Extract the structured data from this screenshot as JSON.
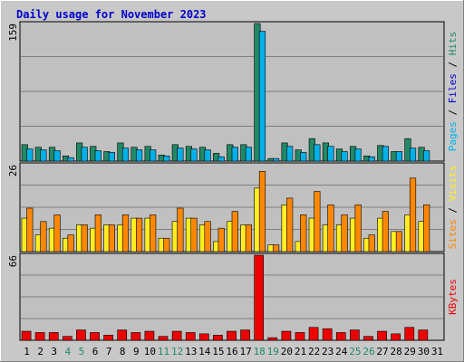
{
  "chart_data": {
    "type": "bar",
    "title": "Daily usage for November 2023",
    "categories": [
      "1",
      "2",
      "3",
      "4",
      "5",
      "6",
      "7",
      "8",
      "9",
      "10",
      "11",
      "12",
      "13",
      "14",
      "15",
      "16",
      "17",
      "18",
      "19",
      "20",
      "21",
      "22",
      "23",
      "24",
      "25",
      "26",
      "27",
      "28",
      "29",
      "30",
      "31"
    ],
    "weekend_days": [
      "4",
      "5",
      "11",
      "12",
      "18",
      "19",
      "25",
      "26"
    ],
    "panels": [
      {
        "id": "hits-files-pages",
        "ymax": 159,
        "ymax_label": "159",
        "legend": [
          "Pages",
          "Files",
          "Hits"
        ],
        "series": [
          {
            "name": "Hits",
            "color": "#228866",
            "values": [
              19,
              16,
              16,
              6,
              21,
              17,
              11,
              21,
              16,
              17,
              7,
              19,
              17,
              16,
              9,
              19,
              19,
              159,
              3,
              21,
              13,
              26,
              21,
              14,
              17,
              6,
              18,
              11,
              26,
              16,
              0
            ]
          },
          {
            "name": "Files",
            "color": "#00b0e8",
            "values": [
              14,
              13,
              12,
              4,
              16,
              12,
              10,
              15,
              13,
              13,
              6,
              15,
              14,
              13,
              5,
              16,
              16,
              150,
              3,
              17,
              10,
              19,
              17,
              11,
              14,
              5,
              17,
              11,
              15,
              12,
              0
            ]
          },
          {
            "name": "Pages",
            "color": "#00b0e8",
            "values": []
          }
        ]
      },
      {
        "id": "visits-sites",
        "ymax": 26,
        "ymax_label": "26",
        "legend": [
          "Sites",
          "Visits"
        ],
        "series": [
          {
            "name": "Visits",
            "color": "#ffee22",
            "values": [
              10,
              5,
              7,
              4,
              8,
              7,
              8,
              8,
              10,
              10,
              4,
              9,
              10,
              8,
              3,
              9,
              8,
              19,
              2,
              14,
              3,
              10,
              8,
              8,
              10,
              4,
              10,
              6,
              11,
              9,
              0
            ]
          },
          {
            "name": "Sites",
            "color": "#ff8800",
            "values": [
              13,
              9,
              11,
              5,
              8,
              11,
              8,
              11,
              10,
              11,
              4,
              13,
              10,
              9,
              7,
              12,
              8,
              24,
              2,
              16,
              11,
              18,
              14,
              11,
              14,
              5,
              12,
              6,
              22,
              14,
              0
            ]
          }
        ]
      },
      {
        "id": "kbytes",
        "ymax": 66,
        "ymax_label": "66",
        "legend": [
          "KBytes"
        ],
        "series": [
          {
            "name": "KBytes",
            "color": "#ee0000",
            "values": [
              7,
              6,
              6,
              3,
              8,
              6,
              4,
              8,
              6,
              7,
              3,
              7,
              6,
              5,
              4,
              7,
              8,
              66,
              2,
              7,
              6,
              10,
              9,
              6,
              8,
              3,
              7,
              5,
              10,
              8,
              0
            ]
          }
        ]
      }
    ]
  }
}
